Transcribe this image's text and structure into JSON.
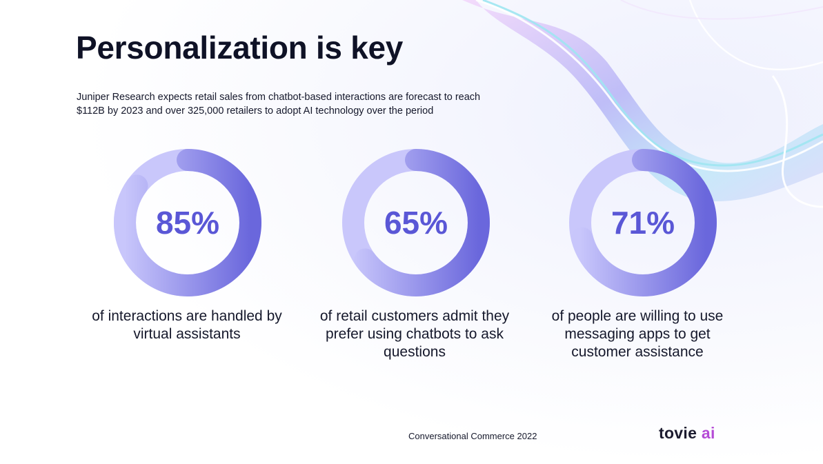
{
  "title": "Personalization is key",
  "subtitle": "Juniper Research expects retail sales from chatbot-based interactions are forecast to reach $112B by 2023 and over 325,000 retailers to adopt AI technology over the period",
  "chart_data": [
    {
      "type": "pie",
      "value": 85,
      "value_label": "85%",
      "caption": "of interactions are handled by virtual assistants"
    },
    {
      "type": "pie",
      "value": 65,
      "value_label": "65%",
      "caption": "of retail customers admit they prefer using chatbots to ask questions"
    },
    {
      "type": "pie",
      "value": 71,
      "value_label": "71%",
      "caption": "of people are willing to use messaging apps to get customer assistance"
    }
  ],
  "footer": {
    "source": "Conversational Commerce 2022"
  },
  "logo": {
    "word": "tovie",
    "accent": "ai"
  },
  "colors": {
    "track": "#c9c7fb",
    "fill_dark": "#6a67dc",
    "fill_light": "#c8c6fb",
    "value_text": "#5a57d6",
    "logo_accent": "#b54bd6"
  }
}
